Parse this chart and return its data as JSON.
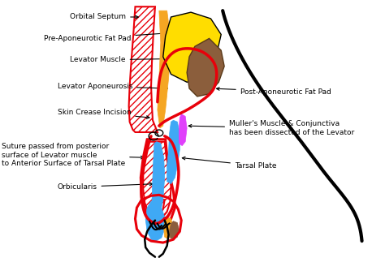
{
  "bg_color": "#ffffff",
  "labels": {
    "orbital_septum": "Orbital Septum",
    "pre_apo_fat": "Pre-Aponeurotic Fat Pad",
    "levator_muscle": "Levator Muscle",
    "levator_aponeurosis": "Levator Aponeurosis",
    "skin_crease": "Skin Crease Incision",
    "suture": "Suture passed from posterior\nsurface of Levator muscle\nto Anterior Surface of Tarsal Plate",
    "orbicularis": "Orbicularis",
    "post_apo_fat": "Post-Aponeurotic Fat Pad",
    "mullers": "Muller's Muscle & Conjunctiva\nhas been dissected of the Levator",
    "tarsal_plate": "Tarsal Plate"
  },
  "colors": {
    "red": "#e8000a",
    "yellow": "#ffdd00",
    "brown": "#8B5E3C",
    "blue": "#3fa9f5",
    "magenta": "#e040fb",
    "black": "#000000",
    "orange": "#f5a623",
    "white": "#ffffff"
  }
}
